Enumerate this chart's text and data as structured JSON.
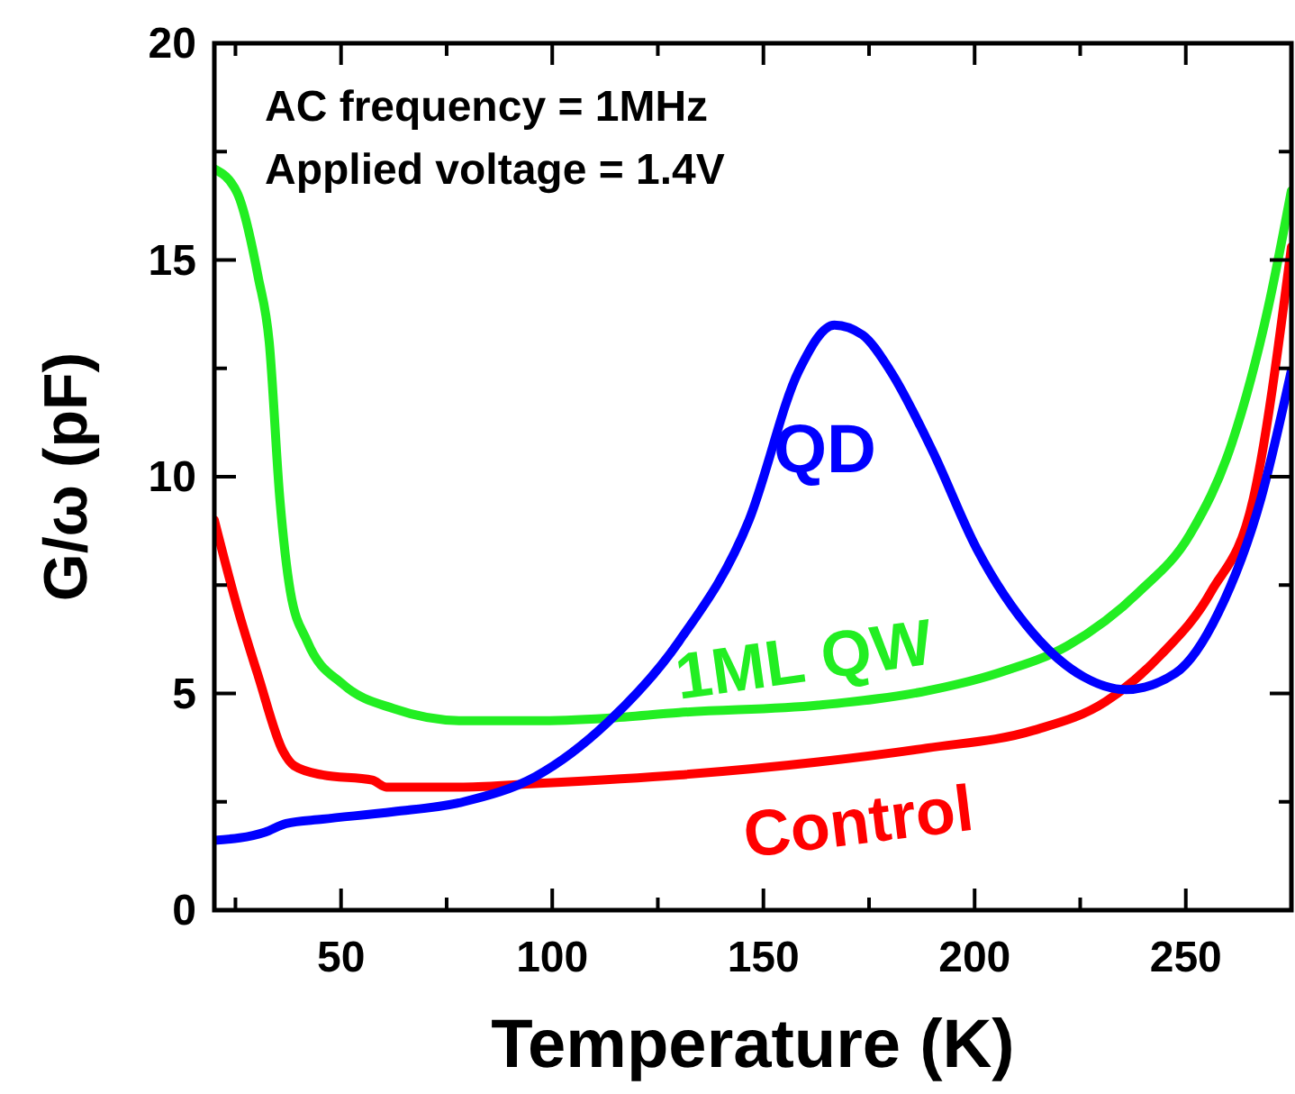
{
  "chart_data": {
    "type": "line",
    "xlabel": "Temperature (K)",
    "ylabel": "G/ω (pF)",
    "xlim": [
      20,
      275
    ],
    "ylim": [
      0,
      20
    ],
    "xticks": [
      {
        "value": 25,
        "label": null
      },
      50,
      {
        "value": 75,
        "label": null
      },
      100,
      {
        "value": 125,
        "label": null
      },
      150,
      {
        "value": 175,
        "label": null
      },
      200,
      {
        "value": 225,
        "label": null
      },
      250
    ],
    "yticks": [
      0,
      {
        "value": 2.5,
        "label": null
      },
      5,
      {
        "value": 7.5,
        "label": null
      },
      10,
      {
        "value": 12.5,
        "label": null
      },
      15,
      {
        "value": 17.5,
        "label": null
      },
      20
    ],
    "grid": false,
    "marker": "none",
    "line_style": "solid",
    "annotations": [
      "AC frequency = 1MHz",
      "Applied voltage = 1.4V"
    ],
    "series": [
      {
        "name": "1ML QW",
        "color": "#22ee22",
        "x": [
          20,
          25.4,
          30.4,
          33,
          35.5,
          38,
          42,
          50.6,
          62.4,
          79,
          96,
          113,
          130,
          163,
          188.7,
          205.5,
          222,
          239,
          251,
          261,
          269.5,
          275
        ],
        "values": [
          17.1,
          16.55,
          14.6,
          13.1,
          9.5,
          7.35,
          6.2,
          5.2,
          4.65,
          4.37,
          4.37,
          4.43,
          4.56,
          4.73,
          5.06,
          5.47,
          6.1,
          7.35,
          8.67,
          10.8,
          13.9,
          16.6
        ]
      },
      {
        "name": "Control",
        "color": "#ff0000",
        "x": [
          20,
          25.4,
          30.4,
          36.3,
          38.9,
          45.6,
          57.4,
          60.7,
          79,
          96,
          130,
          163,
          188.7,
          214,
          231,
          244,
          256,
          266,
          275
        ],
        "values": [
          9.0,
          7.0,
          5.4,
          3.66,
          3.33,
          3.12,
          3.0,
          2.84,
          2.84,
          2.92,
          3.12,
          3.42,
          3.74,
          4.15,
          4.81,
          5.88,
          7.35,
          9.5,
          15.3
        ]
      },
      {
        "name": "QD",
        "color": "#0000ff",
        "x": [
          20,
          32,
          37,
          45.6,
          62.4,
          79,
          96,
          113,
          130,
          146.6,
          158.4,
          166.8,
          173.5,
          180,
          190,
          200.5,
          214,
          225.7,
          235.8,
          247.6,
          257.7,
          267.8,
          275
        ],
        "values": [
          1.61,
          1.8,
          2.0,
          2.1,
          2.27,
          2.5,
          3.08,
          4.32,
          6.2,
          9.0,
          12.45,
          13.5,
          13.27,
          12.45,
          10.6,
          8.34,
          6.37,
          5.39,
          5.09,
          5.47,
          6.86,
          9.5,
          12.45
        ]
      }
    ]
  }
}
